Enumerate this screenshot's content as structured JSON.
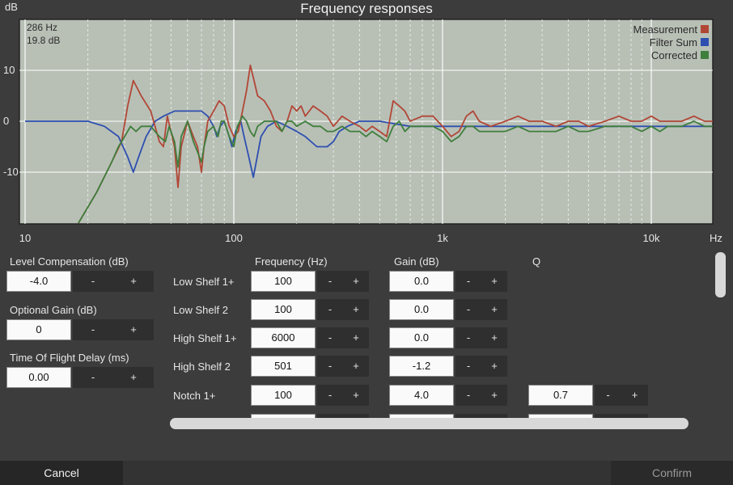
{
  "window": {
    "title": "Frequency responses"
  },
  "chart_data": {
    "type": "line",
    "title": "Frequency responses",
    "ylabel": "dB",
    "xlabel": "Hz",
    "x_scale": "log",
    "xlim": [
      10,
      20000
    ],
    "ylim": [
      -20,
      20
    ],
    "x_ticks": [
      10,
      100,
      1000,
      10000
    ],
    "x_tick_labels": [
      "10",
      "100",
      "1k",
      "10k"
    ],
    "y_ticks": [
      10,
      0,
      -10
    ],
    "y_tick_labels": [
      "10",
      "0",
      "-10"
    ],
    "grid": true,
    "legend_position": "top-right",
    "readout": {
      "freq": "286 Hz",
      "level": "19.8 dB"
    },
    "colors": {
      "background": "#b8c0b6",
      "grid": "#ffffff"
    },
    "series": [
      {
        "name": "Measurement",
        "color": "#b24636",
        "points": [
          [
            18,
            -20
          ],
          [
            22,
            -14
          ],
          [
            26,
            -8
          ],
          [
            29,
            -4
          ],
          [
            31,
            3
          ],
          [
            33,
            8
          ],
          [
            36,
            5
          ],
          [
            40,
            2
          ],
          [
            44,
            -4
          ],
          [
            46,
            -5
          ],
          [
            48,
            1
          ],
          [
            50,
            -2
          ],
          [
            52,
            -5
          ],
          [
            54,
            -13
          ],
          [
            56,
            -5
          ],
          [
            60,
            0
          ],
          [
            64,
            -3
          ],
          [
            67,
            -5
          ],
          [
            70,
            -10
          ],
          [
            72,
            -5
          ],
          [
            75,
            0
          ],
          [
            80,
            2
          ],
          [
            85,
            4
          ],
          [
            90,
            3
          ],
          [
            95,
            -1
          ],
          [
            100,
            -3
          ],
          [
            105,
            -2
          ],
          [
            110,
            2
          ],
          [
            115,
            6
          ],
          [
            120,
            11
          ],
          [
            125,
            8
          ],
          [
            130,
            5
          ],
          [
            140,
            4
          ],
          [
            150,
            2
          ],
          [
            160,
            -1
          ],
          [
            170,
            -2
          ],
          [
            180,
            0
          ],
          [
            190,
            3
          ],
          [
            200,
            2
          ],
          [
            210,
            3
          ],
          [
            220,
            1
          ],
          [
            240,
            3
          ],
          [
            260,
            2
          ],
          [
            280,
            1
          ],
          [
            300,
            -1
          ],
          [
            330,
            1
          ],
          [
            360,
            0
          ],
          [
            400,
            -1
          ],
          [
            430,
            -2
          ],
          [
            460,
            -1
          ],
          [
            500,
            -2
          ],
          [
            540,
            -3
          ],
          [
            580,
            4
          ],
          [
            620,
            3
          ],
          [
            660,
            2
          ],
          [
            700,
            0
          ],
          [
            800,
            1
          ],
          [
            900,
            1
          ],
          [
            1000,
            -1
          ],
          [
            1100,
            -3
          ],
          [
            1200,
            -2
          ],
          [
            1300,
            1
          ],
          [
            1400,
            2
          ],
          [
            1500,
            0
          ],
          [
            1700,
            -1
          ],
          [
            2000,
            0
          ],
          [
            2300,
            1
          ],
          [
            2600,
            0
          ],
          [
            3000,
            0
          ],
          [
            3500,
            -1
          ],
          [
            4000,
            0
          ],
          [
            4500,
            0
          ],
          [
            5000,
            -1
          ],
          [
            6000,
            0
          ],
          [
            7000,
            1
          ],
          [
            8000,
            0
          ],
          [
            9000,
            0
          ],
          [
            10000,
            1
          ],
          [
            11000,
            0
          ],
          [
            12000,
            0
          ],
          [
            14000,
            0
          ],
          [
            16000,
            1
          ],
          [
            18000,
            0
          ],
          [
            20000,
            0
          ]
        ]
      },
      {
        "name": "Filter Sum",
        "color": "#2e4fb0",
        "points": [
          [
            10,
            0
          ],
          [
            20,
            0
          ],
          [
            24,
            -1
          ],
          [
            28,
            -3
          ],
          [
            31,
            -7
          ],
          [
            33,
            -10
          ],
          [
            35,
            -7
          ],
          [
            38,
            -3
          ],
          [
            42,
            0
          ],
          [
            46,
            1
          ],
          [
            52,
            2
          ],
          [
            58,
            2
          ],
          [
            64,
            2
          ],
          [
            70,
            2
          ],
          [
            75,
            1
          ],
          [
            80,
            -1
          ],
          [
            83,
            -3
          ],
          [
            86,
            -1
          ],
          [
            90,
            0
          ],
          [
            95,
            -3
          ],
          [
            98,
            -5
          ],
          [
            102,
            -2
          ],
          [
            108,
            0
          ],
          [
            112,
            -3
          ],
          [
            118,
            -7
          ],
          [
            124,
            -11
          ],
          [
            128,
            -8
          ],
          [
            135,
            -3
          ],
          [
            145,
            -1
          ],
          [
            160,
            0
          ],
          [
            180,
            -1
          ],
          [
            200,
            -2
          ],
          [
            220,
            -3
          ],
          [
            250,
            -5
          ],
          [
            280,
            -5
          ],
          [
            300,
            -4
          ],
          [
            320,
            -2
          ],
          [
            350,
            -1
          ],
          [
            400,
            0
          ],
          [
            500,
            0
          ],
          [
            700,
            -1
          ],
          [
            1000,
            -1
          ],
          [
            2000,
            -1
          ],
          [
            5000,
            -1
          ],
          [
            10000,
            -1
          ],
          [
            20000,
            -1
          ]
        ]
      },
      {
        "name": "Corrected",
        "color": "#3f7e3c",
        "points": [
          [
            18,
            -20
          ],
          [
            22,
            -14
          ],
          [
            26,
            -8
          ],
          [
            28,
            -5
          ],
          [
            30,
            -3
          ],
          [
            32,
            -1
          ],
          [
            34,
            -2
          ],
          [
            36,
            -1
          ],
          [
            40,
            -1
          ],
          [
            44,
            -3
          ],
          [
            47,
            -4
          ],
          [
            49,
            -1
          ],
          [
            52,
            -4
          ],
          [
            54,
            -9
          ],
          [
            56,
            -3
          ],
          [
            60,
            0
          ],
          [
            64,
            -4
          ],
          [
            67,
            -6
          ],
          [
            70,
            -8
          ],
          [
            72,
            -5
          ],
          [
            75,
            -2
          ],
          [
            80,
            -1
          ],
          [
            84,
            -3
          ],
          [
            87,
            0
          ],
          [
            90,
            0
          ],
          [
            95,
            -3
          ],
          [
            100,
            -5
          ],
          [
            104,
            -1
          ],
          [
            110,
            1
          ],
          [
            115,
            0
          ],
          [
            120,
            -2
          ],
          [
            125,
            -3
          ],
          [
            130,
            -1
          ],
          [
            140,
            0
          ],
          [
            150,
            0
          ],
          [
            160,
            0
          ],
          [
            170,
            -2
          ],
          [
            180,
            0
          ],
          [
            190,
            0
          ],
          [
            200,
            -1
          ],
          [
            220,
            0
          ],
          [
            240,
            -1
          ],
          [
            260,
            -1
          ],
          [
            280,
            -2
          ],
          [
            300,
            -2
          ],
          [
            330,
            -1
          ],
          [
            360,
            -2
          ],
          [
            400,
            -2
          ],
          [
            430,
            -3
          ],
          [
            460,
            -2
          ],
          [
            500,
            -3
          ],
          [
            540,
            -4
          ],
          [
            580,
            -1
          ],
          [
            620,
            0
          ],
          [
            660,
            -2
          ],
          [
            700,
            -1
          ],
          [
            800,
            -1
          ],
          [
            900,
            -1
          ],
          [
            1000,
            -2
          ],
          [
            1100,
            -4
          ],
          [
            1200,
            -3
          ],
          [
            1300,
            -1
          ],
          [
            1400,
            -1
          ],
          [
            1500,
            -2
          ],
          [
            1700,
            -2
          ],
          [
            2000,
            -2
          ],
          [
            2300,
            -1
          ],
          [
            2600,
            -2
          ],
          [
            3000,
            -2
          ],
          [
            3500,
            -2
          ],
          [
            4000,
            -1
          ],
          [
            4500,
            -2
          ],
          [
            5000,
            -2
          ],
          [
            6000,
            -1
          ],
          [
            7000,
            -1
          ],
          [
            8000,
            -1
          ],
          [
            9000,
            -2
          ],
          [
            10000,
            -1
          ],
          [
            11000,
            -2
          ],
          [
            12000,
            -1
          ],
          [
            14000,
            -1
          ],
          [
            16000,
            0
          ],
          [
            18000,
            -1
          ],
          [
            20000,
            -1
          ]
        ]
      }
    ]
  },
  "left_panel": {
    "level_compensation": {
      "label": "Level Compensation (dB)",
      "value": "-4.0"
    },
    "optional_gain": {
      "label": "Optional Gain (dB)",
      "value": "0"
    },
    "tof_delay": {
      "label": "Time Of Flight Delay (ms)",
      "value": "0.00"
    },
    "minus": "-",
    "plus": "+"
  },
  "filters": {
    "headers": {
      "frequency": "Frequency (Hz)",
      "gain": "Gain (dB)",
      "q": "Q"
    },
    "rows": [
      {
        "name": "Low Shelf 1+",
        "frequency": "100",
        "gain": "0.0",
        "q": ""
      },
      {
        "name": "Low Shelf 2",
        "frequency": "100",
        "gain": "0.0",
        "q": ""
      },
      {
        "name": "High Shelf 1+",
        "frequency": "6000",
        "gain": "0.0",
        "q": ""
      },
      {
        "name": "High Shelf 2",
        "frequency": "501",
        "gain": "-1.2",
        "q": ""
      },
      {
        "name": "Notch 1+",
        "frequency": "100",
        "gain": "4.0",
        "q": "0.7"
      }
    ]
  },
  "footer": {
    "cancel": "Cancel",
    "confirm": "Confirm"
  }
}
